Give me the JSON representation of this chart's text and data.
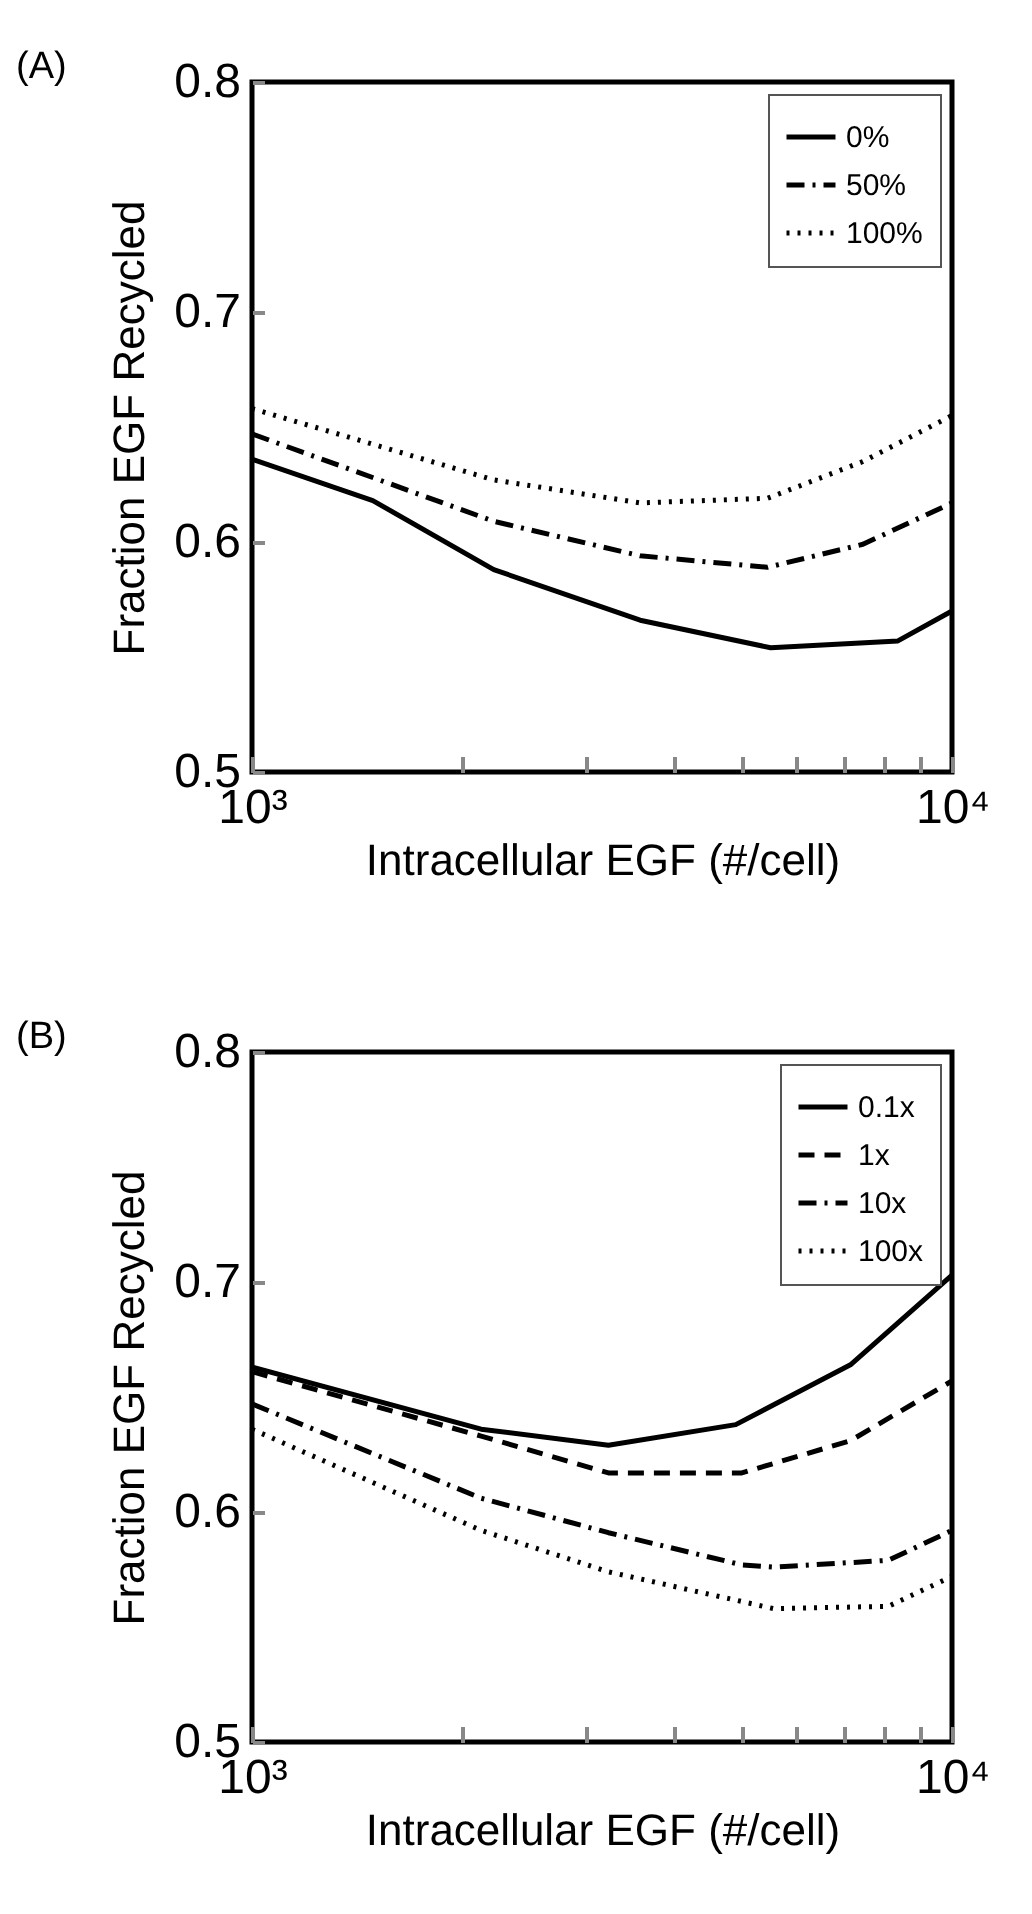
{
  "chart_data": [
    {
      "type": "line",
      "title": "(A)",
      "xlabel": "Intracellular EGF (#/cell)",
      "ylabel": "Fraction EGF Recycled",
      "log": "x",
      "legend": "top right",
      "grid": false,
      "marker": "none",
      "xlim": [
        1000,
        10000
      ],
      "xticks": [
        {
          "value": 1000,
          "label": "10³"
        },
        {
          "value": 2000,
          "label": null
        },
        {
          "value": 3000,
          "label": null
        },
        {
          "value": 4000,
          "label": null
        },
        {
          "value": 5000,
          "label": null
        },
        {
          "value": 6000,
          "label": null
        },
        {
          "value": 7000,
          "label": null
        },
        {
          "value": 8000,
          "label": null
        },
        {
          "value": 9000,
          "label": null
        },
        {
          "value": 10000,
          "label": "10⁴"
        }
      ],
      "ylim": [
        0.5,
        0.8
      ],
      "yticks": [
        0.5,
        0.6,
        0.7,
        0.8
      ],
      "series": [
        {
          "name": "0%",
          "color": "#000000",
          "line_style": "solid",
          "x": [
            1000,
            1488,
            2215,
            3585,
            5508,
            8370,
            10000
          ],
          "values": [
            0.636,
            0.618,
            0.588,
            0.566,
            0.554,
            0.557,
            0.57
          ]
        },
        {
          "name": "50%",
          "color": "#000000",
          "line_style": "dashdot",
          "x": [
            1000,
            2215,
            3585,
            5450,
            7460,
            10000
          ],
          "values": [
            0.647,
            0.609,
            0.594,
            0.589,
            0.599,
            0.617
          ]
        },
        {
          "name": "100%",
          "color": "#000000",
          "line_style": "dotted",
          "x": [
            1000,
            2215,
            3585,
            5450,
            7460,
            10000
          ],
          "values": [
            0.658,
            0.627,
            0.617,
            0.619,
            0.635,
            0.655
          ]
        }
      ]
    },
    {
      "type": "line",
      "title": "(B)",
      "xlabel": "Intracellular EGF (#/cell)",
      "ylabel": "Fraction EGF Recycled",
      "log": "x",
      "legend": "top right",
      "grid": false,
      "marker": "none",
      "xlim": [
        1000,
        10000
      ],
      "xticks": [
        {
          "value": 1000,
          "label": "10³"
        },
        {
          "value": 2000,
          "label": null
        },
        {
          "value": 3000,
          "label": null
        },
        {
          "value": 4000,
          "label": null
        },
        {
          "value": 5000,
          "label": null
        },
        {
          "value": 6000,
          "label": null
        },
        {
          "value": 7000,
          "label": null
        },
        {
          "value": 8000,
          "label": null
        },
        {
          "value": 9000,
          "label": null
        },
        {
          "value": 10000,
          "label": "10⁴"
        }
      ],
      "ylim": [
        0.5,
        0.8
      ],
      "yticks": [
        0.5,
        0.6,
        0.7,
        0.8
      ],
      "series": [
        {
          "name": "0.1x",
          "color": "#000000",
          "line_style": "solid",
          "x": [
            1000,
            2125,
            3230,
            4910,
            7160,
            10000
          ],
          "values": [
            0.663,
            0.636,
            0.629,
            0.638,
            0.664,
            0.703
          ]
        },
        {
          "name": "1x",
          "color": "#000000",
          "line_style": "dashed",
          "x": [
            1000,
            2125,
            3230,
            5010,
            7160,
            10000
          ],
          "values": [
            0.661,
            0.633,
            0.617,
            0.617,
            0.631,
            0.657
          ]
        },
        {
          "name": "10x",
          "color": "#000000",
          "line_style": "dashdot",
          "x": [
            1000,
            2125,
            3230,
            5010,
            5560,
            8110,
            10000
          ],
          "values": [
            0.647,
            0.606,
            0.591,
            0.577,
            0.576,
            0.579,
            0.592
          ]
        },
        {
          "name": "100x",
          "color": "#000000",
          "line_style": "dotted",
          "x": [
            1000,
            2125,
            3230,
            5560,
            8110,
            10000
          ],
          "values": [
            0.636,
            0.592,
            0.574,
            0.558,
            0.559,
            0.572
          ]
        }
      ]
    }
  ]
}
